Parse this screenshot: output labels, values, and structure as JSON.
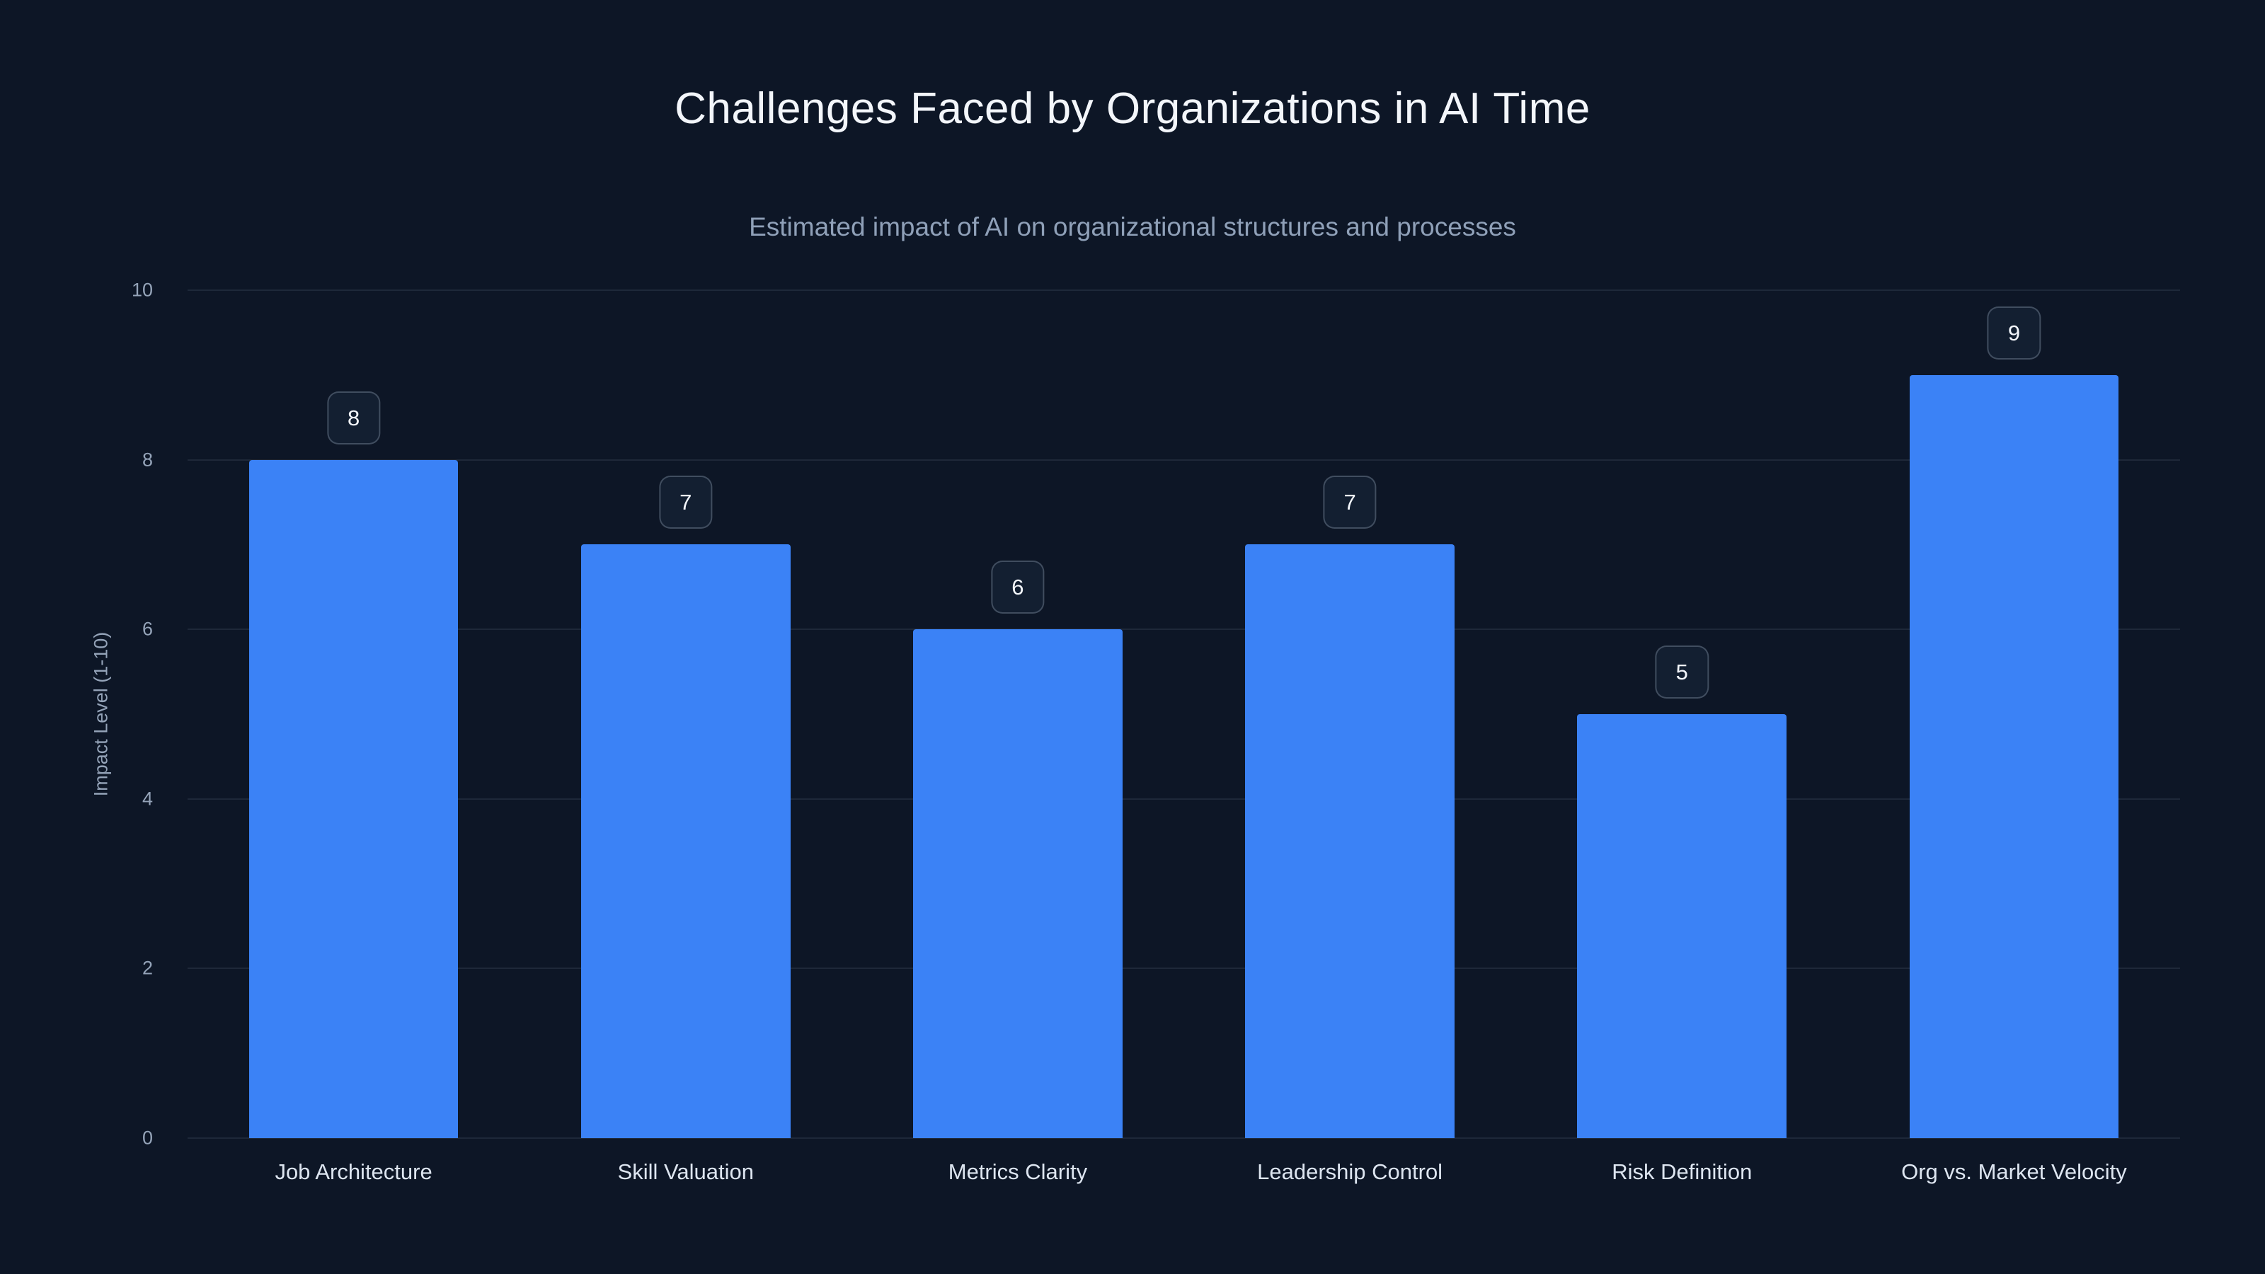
{
  "chart_data": {
    "type": "bar",
    "title": "Challenges Faced by Organizations in AI Time",
    "subtitle": "Estimated impact of AI on organizational structures and processes",
    "xlabel": "",
    "ylabel": "Impact Level (1-10)",
    "categories": [
      "Job Architecture",
      "Skill Valuation",
      "Metrics Clarity",
      "Leadership Control",
      "Risk Definition",
      "Org vs. Market Velocity"
    ],
    "values": [
      8,
      7,
      6,
      7,
      5,
      9
    ],
    "ylim": [
      0,
      10
    ],
    "yticks": [
      0,
      2,
      4,
      6,
      8,
      10
    ],
    "grid": true,
    "legend": "none",
    "bar_color": "#3b82f6",
    "background_color": "#0d1626",
    "value_labels": [
      8,
      7,
      6,
      7,
      5,
      9
    ]
  }
}
